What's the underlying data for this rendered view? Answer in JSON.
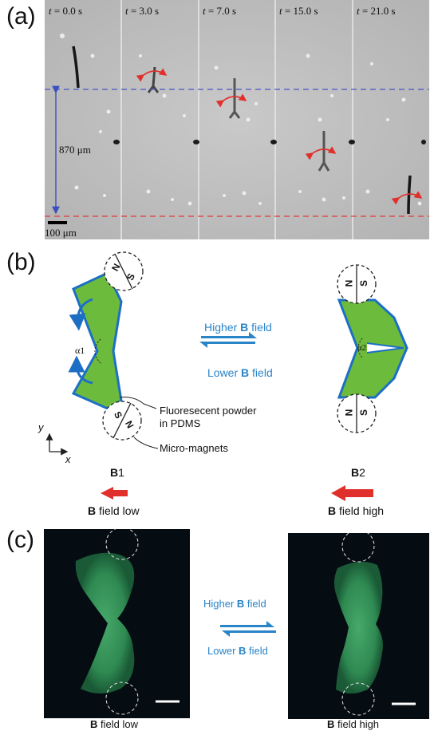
{
  "panel_a": {
    "label": "(a)",
    "frames": [
      {
        "t_var": "t",
        "t_value": "= 0.0 s"
      },
      {
        "t_var": "t",
        "t_value": "= 3.0 s"
      },
      {
        "t_var": "t",
        "t_value": "= 7.0 s"
      },
      {
        "t_var": "t",
        "t_value": "= 15.0 s"
      },
      {
        "t_var": "t",
        "t_value": "= 21.0 s"
      }
    ],
    "distance_label": "870 μm",
    "scale_label": "100 μm",
    "colors": {
      "top_line": "#4a55c8",
      "bottom_line": "#e03a3a",
      "arrow": "#e0302c"
    }
  },
  "panel_b": {
    "label": "(b)",
    "left_angle": "α1",
    "right_angle": "α2",
    "higher_prefix": "Higher ",
    "lower_prefix": "Lower ",
    "b_symbol": "B",
    "field_suffix": " field",
    "annotation_powder_line1": "Fluoresecent powder",
    "annotation_powder_line2": "in PDMS",
    "annotation_magnets": "Micro-magnets",
    "axis_y": "y",
    "axis_x": "x",
    "magnet_n": "N",
    "magnet_s": "S",
    "b1_num": "1",
    "b2_num": "2",
    "low_suffix": " field low",
    "high_suffix": " field high",
    "colors": {
      "shape_fill": "#6dbb3c",
      "shape_stroke": "#1d6fc4",
      "field_arrow": "#e0302c",
      "swap_arrows": "#2a84c8"
    }
  },
  "panel_c": {
    "label": "(c)",
    "higher_prefix": "Higher ",
    "lower_prefix": "Lower ",
    "b_symbol": "B",
    "field_suffix": " field",
    "left_caption_suffix": " field low",
    "right_caption_suffix": " field high",
    "colors": {
      "background": "#060d12",
      "fluor": "#3c9a5e"
    }
  }
}
